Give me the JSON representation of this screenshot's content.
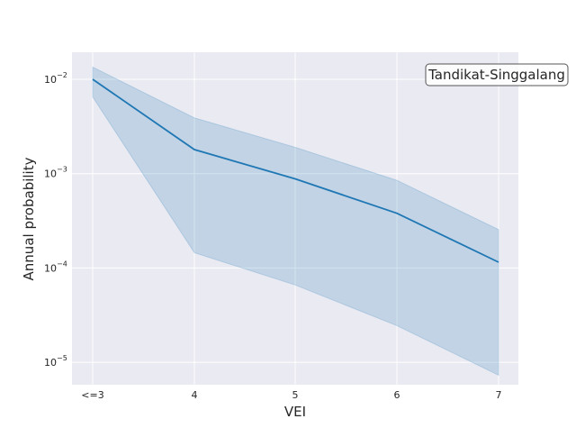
{
  "chart_data": {
    "type": "line",
    "xlabel": "VEI",
    "ylabel": "Annual probability",
    "yscale": "log",
    "grid": true,
    "categories": [
      "<=3",
      "4",
      "5",
      "6",
      "7"
    ],
    "series": [
      {
        "values": [
          0.01,
          0.0018,
          0.00088,
          0.00038,
          0.000115
        ],
        "lower": [
          0.0065,
          0.000145,
          6.6e-05,
          2.45e-05,
          7.3e-06
        ],
        "upper": [
          0.0135,
          0.0039,
          0.0019,
          0.00085,
          0.000255
        ],
        "color": "#1f77b4"
      }
    ],
    "yticks": [
      {
        "base": "10",
        "exp": "−2"
      },
      {
        "base": "10",
        "exp": "−3"
      },
      {
        "base": "10",
        "exp": "−4"
      },
      {
        "base": "10",
        "exp": "−5"
      }
    ],
    "annotation": "Tandikat-Singgalang",
    "colors": {
      "plot_background": "#eaeaf2",
      "grid": "#ffffff",
      "line": "#1f77b4",
      "band": "#1f77b4"
    }
  }
}
